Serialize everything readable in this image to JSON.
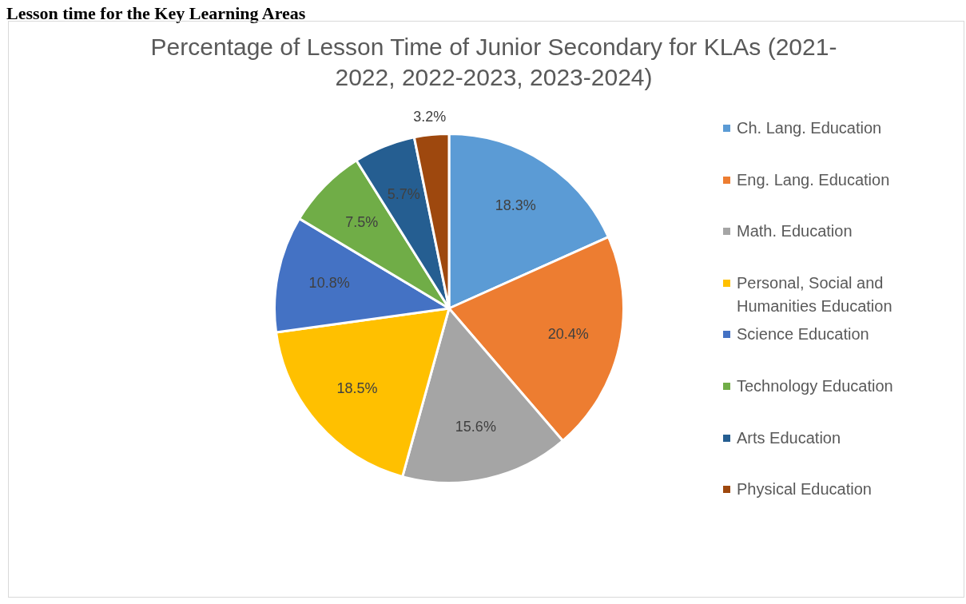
{
  "chart_data": {
    "type": "pie",
    "title": "Percentage of Lesson Time of Junior Secondary for KLAs (2021-2022, 2022-2023, 2023-2024)",
    "annotations": [
      "Lesson time for the Key Learning Areas"
    ],
    "categories": [
      "Ch. Lang. Education",
      "Eng. Lang. Education",
      "Math. Education",
      "Personal, Social and Humanities Education",
      "Science Education",
      "Technology Education",
      "Arts Education",
      "Physical Education"
    ],
    "values": [
      18.3,
      20.4,
      15.6,
      18.5,
      10.8,
      7.5,
      5.7,
      3.2
    ],
    "colors": [
      "#5b9bd5",
      "#ed7d31",
      "#a5a5a5",
      "#ffc000",
      "#4472c4",
      "#70ad47",
      "#255e91",
      "#9e480e"
    ],
    "value_labels": [
      "18.3%",
      "20.4%",
      "15.6%",
      "18.5%",
      "10.8%",
      "7.5%",
      "5.7%",
      "3.2%"
    ],
    "legend": "right"
  }
}
